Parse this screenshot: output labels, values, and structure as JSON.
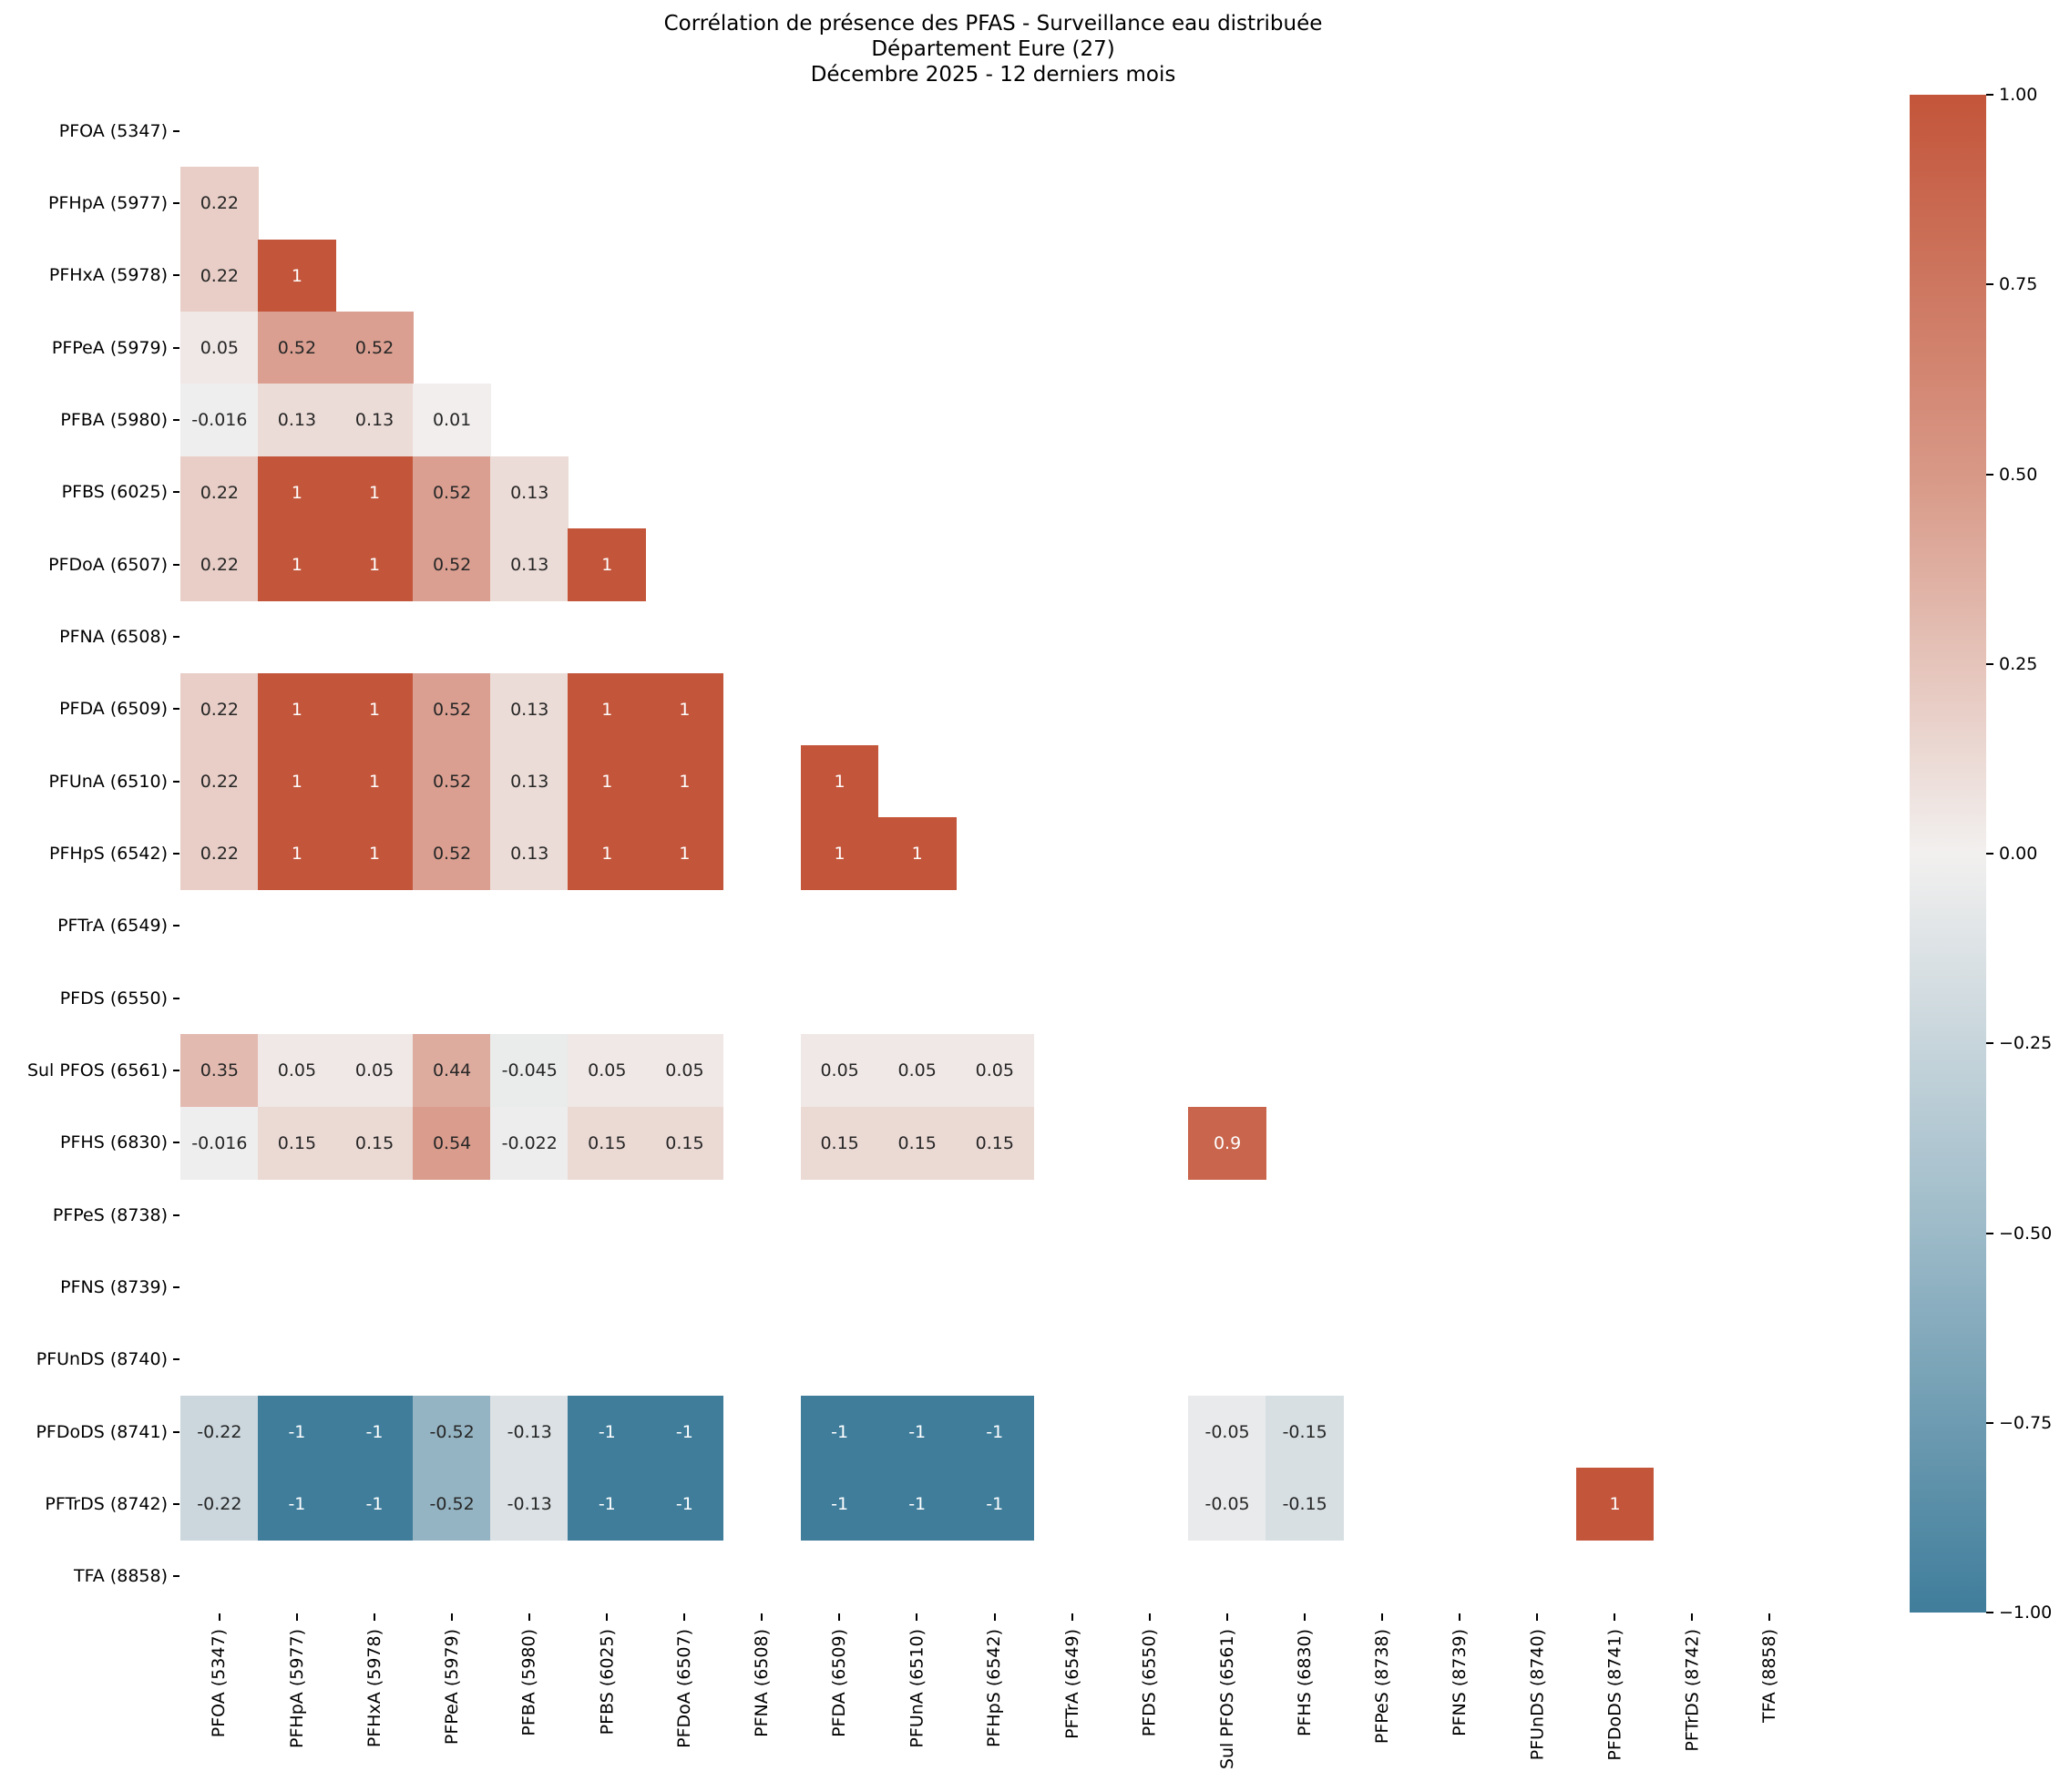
{
  "chart_data": {
    "type": "heatmap",
    "title": "Corrélation de présence des PFAS - Surveillance eau distribuée",
    "subtitle_lines": [
      "Département Eure (27)",
      "Décembre 2025 - 12 derniers mois"
    ],
    "xlabel": "",
    "ylabel": "",
    "labels": [
      "PFOA (5347)",
      "PFHpA (5977)",
      "PFHxA (5978)",
      "PFPeA (5979)",
      "PFBA (5980)",
      "PFBS (6025)",
      "PFDoA (6507)",
      "PFNA (6508)",
      "PFDA (6509)",
      "PFUnA (6510)",
      "PFHpS (6542)",
      "PFTrA (6549)",
      "PFDS (6550)",
      "Sul PFOS (6561)",
      "PFHS (6830)",
      "PFPeS (8738)",
      "PFNS (8739)",
      "PFUnDS (8740)",
      "PFDoDS (8741)",
      "PFTrDS (8742)",
      "TFA (8858)"
    ],
    "mask": "upper triangle incl. diagonal; rows/cols with no variance are blank",
    "matrix": [
      [
        null,
        null,
        null,
        null,
        null,
        null,
        null,
        null,
        null,
        null,
        null,
        null,
        null,
        null,
        null,
        null,
        null,
        null,
        null,
        null,
        null
      ],
      [
        0.22,
        null,
        null,
        null,
        null,
        null,
        null,
        null,
        null,
        null,
        null,
        null,
        null,
        null,
        null,
        null,
        null,
        null,
        null,
        null,
        null
      ],
      [
        0.22,
        1,
        null,
        null,
        null,
        null,
        null,
        null,
        null,
        null,
        null,
        null,
        null,
        null,
        null,
        null,
        null,
        null,
        null,
        null,
        null
      ],
      [
        0.05,
        0.52,
        0.52,
        null,
        null,
        null,
        null,
        null,
        null,
        null,
        null,
        null,
        null,
        null,
        null,
        null,
        null,
        null,
        null,
        null,
        null
      ],
      [
        -0.016,
        0.13,
        0.13,
        0.01,
        null,
        null,
        null,
        null,
        null,
        null,
        null,
        null,
        null,
        null,
        null,
        null,
        null,
        null,
        null,
        null,
        null
      ],
      [
        0.22,
        1,
        1,
        0.52,
        0.13,
        null,
        null,
        null,
        null,
        null,
        null,
        null,
        null,
        null,
        null,
        null,
        null,
        null,
        null,
        null,
        null
      ],
      [
        0.22,
        1,
        1,
        0.52,
        0.13,
        1,
        null,
        null,
        null,
        null,
        null,
        null,
        null,
        null,
        null,
        null,
        null,
        null,
        null,
        null,
        null
      ],
      [
        null,
        null,
        null,
        null,
        null,
        null,
        null,
        null,
        null,
        null,
        null,
        null,
        null,
        null,
        null,
        null,
        null,
        null,
        null,
        null,
        null
      ],
      [
        0.22,
        1,
        1,
        0.52,
        0.13,
        1,
        1,
        null,
        null,
        null,
        null,
        null,
        null,
        null,
        null,
        null,
        null,
        null,
        null,
        null,
        null
      ],
      [
        0.22,
        1,
        1,
        0.52,
        0.13,
        1,
        1,
        null,
        1,
        null,
        null,
        null,
        null,
        null,
        null,
        null,
        null,
        null,
        null,
        null,
        null
      ],
      [
        0.22,
        1,
        1,
        0.52,
        0.13,
        1,
        1,
        null,
        1,
        1,
        null,
        null,
        null,
        null,
        null,
        null,
        null,
        null,
        null,
        null,
        null
      ],
      [
        null,
        null,
        null,
        null,
        null,
        null,
        null,
        null,
        null,
        null,
        null,
        null,
        null,
        null,
        null,
        null,
        null,
        null,
        null,
        null,
        null
      ],
      [
        null,
        null,
        null,
        null,
        null,
        null,
        null,
        null,
        null,
        null,
        null,
        null,
        null,
        null,
        null,
        null,
        null,
        null,
        null,
        null,
        null
      ],
      [
        0.35,
        0.05,
        0.05,
        0.44,
        -0.045,
        0.05,
        0.05,
        null,
        0.05,
        0.05,
        0.05,
        null,
        null,
        null,
        null,
        null,
        null,
        null,
        null,
        null,
        null
      ],
      [
        -0.016,
        0.15,
        0.15,
        0.54,
        -0.022,
        0.15,
        0.15,
        null,
        0.15,
        0.15,
        0.15,
        null,
        null,
        0.9,
        null,
        null,
        null,
        null,
        null,
        null,
        null
      ],
      [
        null,
        null,
        null,
        null,
        null,
        null,
        null,
        null,
        null,
        null,
        null,
        null,
        null,
        null,
        null,
        null,
        null,
        null,
        null,
        null,
        null
      ],
      [
        null,
        null,
        null,
        null,
        null,
        null,
        null,
        null,
        null,
        null,
        null,
        null,
        null,
        null,
        null,
        null,
        null,
        null,
        null,
        null,
        null
      ],
      [
        null,
        null,
        null,
        null,
        null,
        null,
        null,
        null,
        null,
        null,
        null,
        null,
        null,
        null,
        null,
        null,
        null,
        null,
        null,
        null,
        null
      ],
      [
        -0.22,
        -1,
        -1,
        -0.52,
        -0.13,
        -1,
        -1,
        null,
        -1,
        -1,
        -1,
        null,
        null,
        -0.05,
        -0.15,
        null,
        null,
        null,
        null,
        null,
        null
      ],
      [
        -0.22,
        -1,
        -1,
        -0.52,
        -0.13,
        -1,
        -1,
        null,
        -1,
        -1,
        -1,
        null,
        null,
        -0.05,
        -0.15,
        null,
        null,
        null,
        1,
        null,
        null
      ],
      [
        null,
        null,
        null,
        null,
        null,
        null,
        null,
        null,
        null,
        null,
        null,
        null,
        null,
        null,
        null,
        null,
        null,
        null,
        null,
        null,
        null
      ]
    ],
    "colorbar": {
      "range": [
        -1.0,
        1.0
      ],
      "ticks": [
        "1.00",
        "0.75",
        "0.50",
        "0.25",
        "0.00",
        "−0.25",
        "−0.50",
        "−0.75",
        "−1.00"
      ],
      "tick_values": [
        1.0,
        0.75,
        0.5,
        0.25,
        0.0,
        -0.25,
        -0.5,
        -0.75,
        -1.0
      ],
      "colors": {
        "positive": "#c3553a",
        "zero": "#f2f0ef",
        "negative": "#3f7d9b"
      }
    },
    "grid": false,
    "legend_position": "right (colorbar)"
  },
  "title": {
    "line1": "Corrélation de présence des PFAS - Surveillance eau distribuée",
    "line2": "Département Eure (27)",
    "line3": "Décembre 2025 - 12 derniers mois"
  }
}
